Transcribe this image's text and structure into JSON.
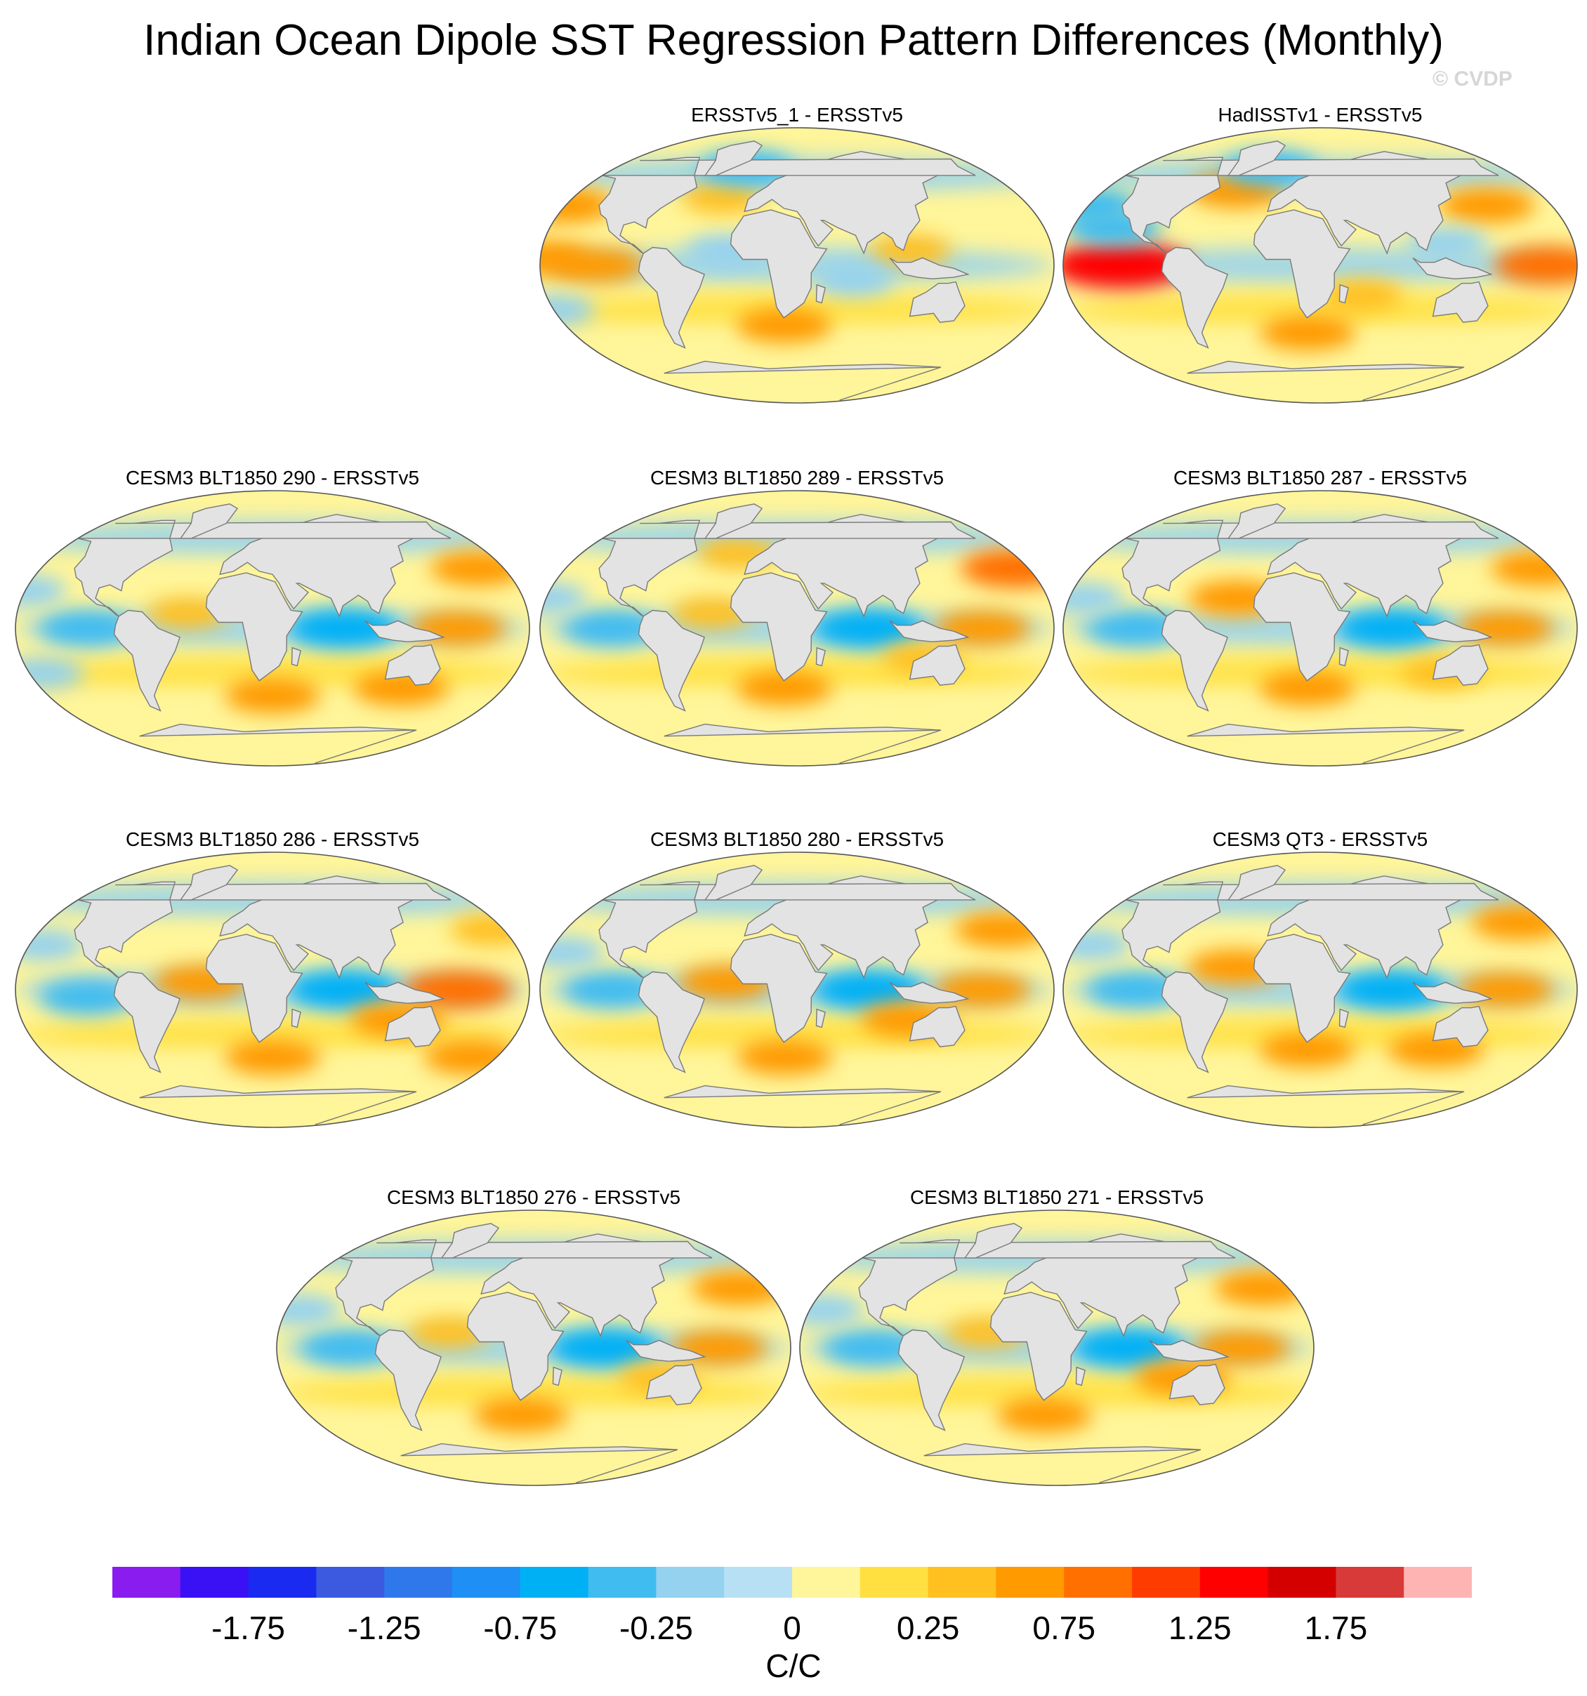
{
  "title": "Indian Ocean Dipole SST Regression Pattern Differences (Monthly)",
  "watermark": "© CVDP",
  "chart_data": {
    "type": "heatmap",
    "projection": "Robinson-like global map",
    "panels": [
      {
        "id": "p1",
        "label": "ERSSTv5_1 - ERSSTv5",
        "features": [
          {
            "lon": -150,
            "lat": 40,
            "value": 0.5
          },
          {
            "lon": -110,
            "lat": 0,
            "value": 0.5
          },
          {
            "lon": -150,
            "lat": 5,
            "value": 0.5
          },
          {
            "lon": 20,
            "lat": -40,
            "value": 0.5
          },
          {
            "lon": -30,
            "lat": 45,
            "value": 0.25
          },
          {
            "lon": 110,
            "lat": 10,
            "value": 0.25
          },
          {
            "lon": -20,
            "lat": 10,
            "value": -0.25
          },
          {
            "lon": 70,
            "lat": -10,
            "value": -0.25
          },
          {
            "lon": -150,
            "lat": -30,
            "value": -0.25
          },
          {
            "lon": -20,
            "lat": 65,
            "value": -0.5
          }
        ]
      },
      {
        "id": "p2",
        "label": "HadISSTv1 - ERSSTv5",
        "features": [
          {
            "lon": -110,
            "lat": 0,
            "value": 1.25
          },
          {
            "lon": -170,
            "lat": 0,
            "value": 0.75
          },
          {
            "lon": 160,
            "lat": 40,
            "value": 0.5
          },
          {
            "lon": -40,
            "lat": 50,
            "value": 0.5
          },
          {
            "lon": 60,
            "lat": -20,
            "value": 0.25
          },
          {
            "lon": 20,
            "lat": -45,
            "value": 0.5
          },
          {
            "lon": -150,
            "lat": 40,
            "value": -0.5
          },
          {
            "lon": -120,
            "lat": 25,
            "value": -0.5
          },
          {
            "lon": -20,
            "lat": 65,
            "value": -0.5
          },
          {
            "lon": 120,
            "lat": 15,
            "value": -0.25
          }
        ]
      },
      {
        "id": "p3",
        "label": "CESM3 BLT1850 290 - ERSSTv5",
        "features": [
          {
            "lon": 80,
            "lat": 0,
            "value": -0.75
          },
          {
            "lon": 160,
            "lat": 0,
            "value": 0.5
          },
          {
            "lon": -170,
            "lat": 40,
            "value": 0.5
          },
          {
            "lon": 30,
            "lat": -45,
            "value": 0.5
          },
          {
            "lon": -30,
            "lat": 10,
            "value": 0.25
          },
          {
            "lon": 130,
            "lat": -40,
            "value": 0.5
          },
          {
            "lon": -100,
            "lat": 0,
            "value": -0.5
          },
          {
            "lon": -150,
            "lat": 25,
            "value": -0.25
          },
          {
            "lon": -140,
            "lat": -30,
            "value": -0.25
          }
        ]
      },
      {
        "id": "p4",
        "label": "CESM3 BLT1850 289 - ERSSTv5",
        "features": [
          {
            "lon": 80,
            "lat": 0,
            "value": -0.75
          },
          {
            "lon": 160,
            "lat": 0,
            "value": 0.5
          },
          {
            "lon": -160,
            "lat": 40,
            "value": 0.75
          },
          {
            "lon": 20,
            "lat": -40,
            "value": 0.5
          },
          {
            "lon": -30,
            "lat": 10,
            "value": 0.25
          },
          {
            "lon": 120,
            "lat": -20,
            "value": 0.25
          },
          {
            "lon": -100,
            "lat": 0,
            "value": -0.5
          },
          {
            "lon": -150,
            "lat": 20,
            "value": -0.25
          },
          {
            "lon": -20,
            "lat": 50,
            "value": 0.25
          }
        ]
      },
      {
        "id": "p5",
        "label": "CESM3 BLT1850 287 - ERSSTv5",
        "features": [
          {
            "lon": 80,
            "lat": 0,
            "value": -0.75
          },
          {
            "lon": 160,
            "lat": 0,
            "value": 0.5
          },
          {
            "lon": -160,
            "lat": 40,
            "value": 0.5
          },
          {
            "lon": 20,
            "lat": -40,
            "value": 0.5
          },
          {
            "lon": -30,
            "lat": 20,
            "value": 0.5
          },
          {
            "lon": 120,
            "lat": -30,
            "value": 0.25
          },
          {
            "lon": -100,
            "lat": 0,
            "value": -0.5
          },
          {
            "lon": -140,
            "lat": 20,
            "value": -0.25
          }
        ]
      },
      {
        "id": "p6",
        "label": "CESM3 BLT1850 286 - ERSSTv5",
        "features": [
          {
            "lon": 80,
            "lat": 0,
            "value": -0.75
          },
          {
            "lon": 160,
            "lat": 0,
            "value": 0.75
          },
          {
            "lon": -160,
            "lat": 40,
            "value": 0.25
          },
          {
            "lon": 30,
            "lat": -45,
            "value": 0.5
          },
          {
            "lon": -20,
            "lat": 5,
            "value": 0.5
          },
          {
            "lon": 120,
            "lat": -20,
            "value": 0.5
          },
          {
            "lon": -170,
            "lat": -45,
            "value": 0.5
          },
          {
            "lon": -100,
            "lat": -5,
            "value": -0.5
          },
          {
            "lon": -140,
            "lat": 30,
            "value": -0.25
          }
        ]
      },
      {
        "id": "p7",
        "label": "CESM3 BLT1850 280 - ERSSTv5",
        "features": [
          {
            "lon": 80,
            "lat": 0,
            "value": -0.75
          },
          {
            "lon": 160,
            "lat": 0,
            "value": 0.5
          },
          {
            "lon": -170,
            "lat": 40,
            "value": 0.5
          },
          {
            "lon": 20,
            "lat": -45,
            "value": 0.5
          },
          {
            "lon": -20,
            "lat": 5,
            "value": 0.5
          },
          {
            "lon": 110,
            "lat": -20,
            "value": 0.5
          },
          {
            "lon": -100,
            "lat": 0,
            "value": -0.5
          },
          {
            "lon": -140,
            "lat": 25,
            "value": -0.25
          }
        ]
      },
      {
        "id": "p8",
        "label": "CESM3 QT3 - ERSSTv5",
        "features": [
          {
            "lon": 80,
            "lat": 0,
            "value": -0.75
          },
          {
            "lon": 160,
            "lat": 0,
            "value": 0.5
          },
          {
            "lon": -170,
            "lat": 45,
            "value": 0.5
          },
          {
            "lon": 20,
            "lat": -40,
            "value": 0.5
          },
          {
            "lon": -30,
            "lat": 15,
            "value": 0.5
          },
          {
            "lon": 120,
            "lat": -40,
            "value": 0.5
          },
          {
            "lon": -100,
            "lat": 0,
            "value": -0.5
          },
          {
            "lon": -140,
            "lat": 30,
            "value": -0.25
          }
        ]
      },
      {
        "id": "p9",
        "label": "CESM3 BLT1850 276 - ERSSTv5",
        "features": [
          {
            "lon": 80,
            "lat": 0,
            "value": -0.75
          },
          {
            "lon": 160,
            "lat": 0,
            "value": 0.5
          },
          {
            "lon": -170,
            "lat": 40,
            "value": 0.5
          },
          {
            "lon": 20,
            "lat": -45,
            "value": 0.5
          },
          {
            "lon": -30,
            "lat": 10,
            "value": 0.25
          },
          {
            "lon": 120,
            "lat": -20,
            "value": 0.25
          },
          {
            "lon": -100,
            "lat": 0,
            "value": -0.5
          },
          {
            "lon": -140,
            "lat": 25,
            "value": -0.25
          }
        ]
      },
      {
        "id": "p10",
        "label": "CESM3 BLT1850 271 - ERSSTv5",
        "features": [
          {
            "lon": 80,
            "lat": 0,
            "value": -0.75
          },
          {
            "lon": 160,
            "lat": 0,
            "value": 0.5
          },
          {
            "lon": -170,
            "lat": 40,
            "value": 0.5
          },
          {
            "lon": 20,
            "lat": -45,
            "value": 0.5
          },
          {
            "lon": -20,
            "lat": 10,
            "value": 0.25
          },
          {
            "lon": 120,
            "lat": -20,
            "value": 0.5
          },
          {
            "lon": -100,
            "lat": 0,
            "value": -0.5
          },
          {
            "lon": -140,
            "lat": 25,
            "value": -0.25
          }
        ]
      }
    ],
    "colorbar": {
      "levels": [
        -2.0,
        -1.75,
        -1.5,
        -1.25,
        -1.0,
        -0.75,
        -0.5,
        -0.25,
        -0.1,
        0,
        0.1,
        0.25,
        0.5,
        0.75,
        1.0,
        1.25,
        1.5,
        1.75,
        2.0
      ],
      "colors": [
        "#8a1cf0",
        "#3a10f5",
        "#1a2af0",
        "#3c5ae0",
        "#2e78ec",
        "#1e90f5",
        "#00b0f5",
        "#40bcf0",
        "#94d2f0",
        "#b8e0f4",
        "#fff59a",
        "#ffe040",
        "#ffc020",
        "#ff9a00",
        "#ff7000",
        "#ff3c00",
        "#ff0000",
        "#d40000",
        "#d83a3a",
        "#ffb4b4"
      ],
      "tick_labels": [
        "-1.75",
        "-1.25",
        "-0.75",
        "-0.25",
        "0",
        "0.25",
        "0.75",
        "1.25",
        "1.75"
      ],
      "tick_label_levels": [
        -1.75,
        -1.25,
        -0.75,
        -0.25,
        0,
        0.25,
        0.75,
        1.25,
        1.75
      ],
      "units": "C/C"
    }
  }
}
